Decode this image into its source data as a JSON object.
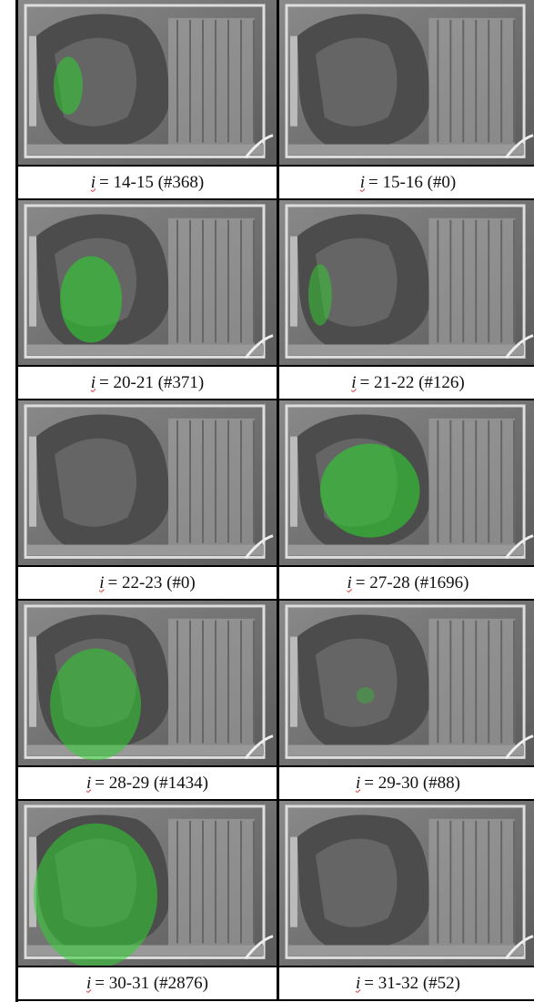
{
  "figure": {
    "cells": [
      {
        "symbol": "i",
        "text": "= 14-15 (#368)"
      },
      {
        "symbol": "i",
        "text": "= 15-16 (#0)"
      },
      {
        "symbol": "i",
        "text": "= 20-21 (#371)"
      },
      {
        "symbol": "i",
        "text": "= 21-22 (#126)"
      },
      {
        "symbol": "i",
        "text": "= 22-23 (#0)"
      },
      {
        "symbol": "i",
        "text": "= 27-28 (#1696)"
      },
      {
        "symbol": "i",
        "text": "= 28-29 (#1434)"
      },
      {
        "symbol": "i",
        "text": "= 29-30 (#88)"
      },
      {
        "symbol": "i",
        "text": "= 30-31 (#2876)"
      },
      {
        "symbol": "i",
        "text": "= 31-32 (#52)"
      }
    ]
  }
}
